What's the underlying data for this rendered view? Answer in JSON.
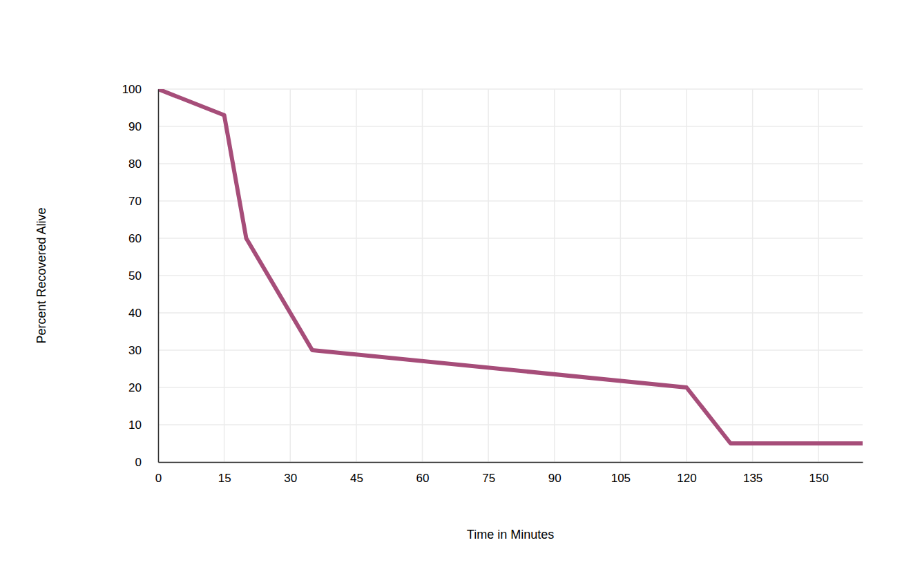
{
  "chart_data": {
    "type": "line",
    "x_label": "Time in Minutes",
    "y_label": "Percent Recovered Alive",
    "x": [
      0,
      15,
      20,
      35,
      120,
      130,
      160
    ],
    "values": [
      100,
      93,
      60,
      30,
      20,
      5,
      5
    ],
    "color": "#a64d79",
    "xlim": [
      0,
      160
    ],
    "ylim": [
      0,
      100
    ],
    "xticks": [
      0,
      15,
      30,
      45,
      60,
      75,
      90,
      105,
      120,
      135,
      150
    ],
    "yticks": [
      0,
      10,
      20,
      30,
      40,
      50,
      60,
      70,
      80,
      90,
      100
    ],
    "grid": true
  }
}
